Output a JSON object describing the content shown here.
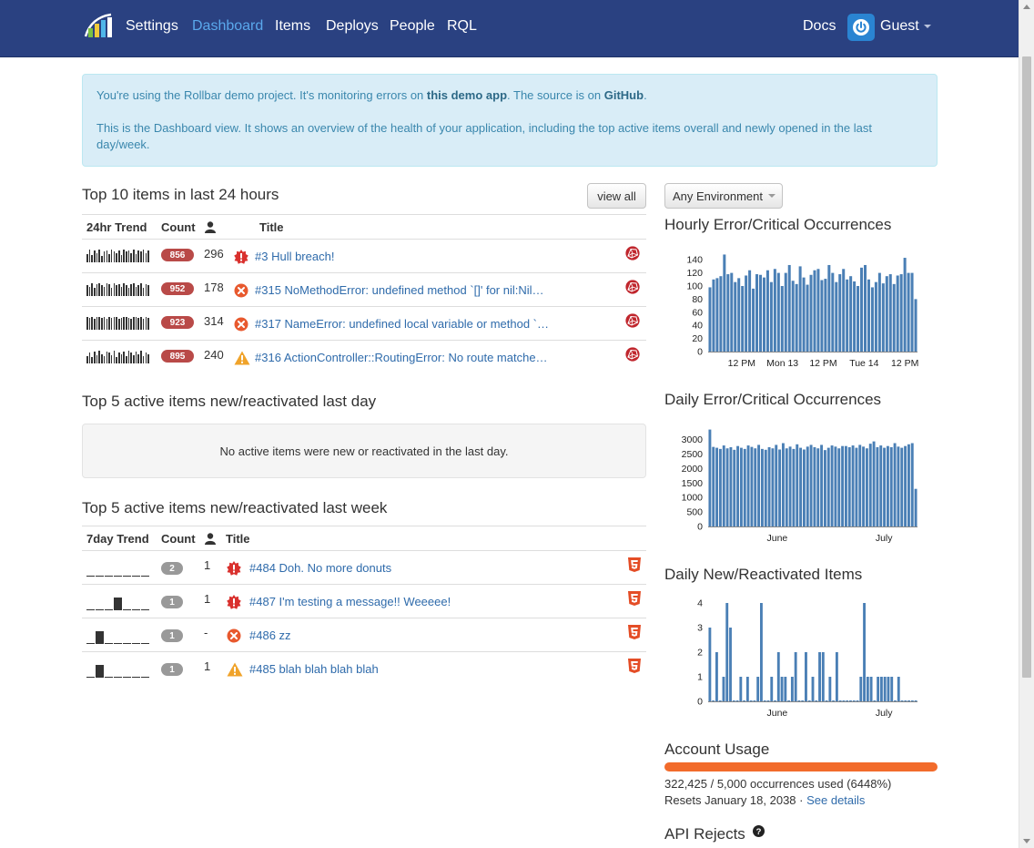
{
  "nav": {
    "items": [
      "Settings",
      "Dashboard",
      "Items",
      "Deploys",
      "People",
      "RQL"
    ],
    "active": "Dashboard",
    "docs": "Docs",
    "user": "Guest"
  },
  "alert": {
    "line1_pre": "You're using the Rollbar demo project. It's monitoring errors on ",
    "line1_link1": "this demo app",
    "line1_mid": ". The source is on ",
    "line1_link2": "GitHub",
    "line1_end": ".",
    "line2": "This is the Dashboard view. It shows an overview of the health of your application, including the top active items overall and newly opened in the last day/week."
  },
  "top10": {
    "title": "Top 10 items in last 24 hours",
    "view_all": "view all",
    "headers": {
      "trend": "24hr Trend",
      "count": "Count",
      "title": "Title"
    },
    "rows": [
      {
        "count": "856",
        "users": "296",
        "level": "critical",
        "title": "#3 Hull breach!",
        "trend": [
          8,
          12,
          7,
          11,
          9,
          12,
          6,
          10,
          11,
          8,
          12,
          10,
          9,
          11,
          7,
          12,
          10,
          11,
          9,
          12,
          8,
          11,
          10,
          12,
          9,
          11
        ]
      },
      {
        "count": "952",
        "users": "178",
        "level": "error",
        "title": "#315 NoMethodError: undefined method `[]' for nil:Nil…",
        "trend": [
          10,
          9,
          12,
          8,
          11,
          12,
          10,
          9,
          12,
          11,
          8,
          12,
          10,
          11,
          9,
          12,
          10,
          8,
          11,
          12,
          9,
          10,
          12,
          8,
          11,
          10
        ]
      },
      {
        "count": "923",
        "users": "314",
        "level": "error",
        "title": "#317 NameError: undefined local variable or method `…",
        "trend": [
          12,
          11,
          12,
          10,
          12,
          12,
          11,
          12,
          10,
          12,
          11,
          12,
          12,
          10,
          11,
          12,
          12,
          11,
          10,
          12,
          12,
          11,
          12,
          10,
          12,
          11
        ]
      },
      {
        "count": "895",
        "users": "240",
        "level": "warning",
        "title": "#316 ActionController::RoutingError: No route matche…",
        "trend": [
          7,
          10,
          6,
          11,
          8,
          12,
          9,
          7,
          11,
          10,
          8,
          12,
          6,
          10,
          9,
          11,
          7,
          12,
          10,
          8,
          11,
          9,
          12,
          7,
          10,
          9
        ]
      }
    ]
  },
  "top5day": {
    "title": "Top 5 active items new/reactivated last day",
    "empty": "No active items were new or reactivated in the last day."
  },
  "top5week": {
    "title": "Top 5 active items new/reactivated last week",
    "headers": {
      "trend": "7day Trend",
      "count": "Count",
      "title": "Title"
    },
    "rows": [
      {
        "count": "2",
        "users": "1",
        "level": "critical",
        "title": "#484 Doh. No more donuts",
        "trend": [
          0,
          0,
          0,
          0,
          0,
          0,
          0
        ]
      },
      {
        "count": "1",
        "users": "1",
        "level": "critical",
        "title": "#487 I'm testing a message!! Weeeee!",
        "trend": [
          0,
          0,
          0,
          1,
          0,
          0,
          0
        ]
      },
      {
        "count": "1",
        "users": "-",
        "level": "error",
        "title": "#486 zz",
        "trend": [
          0,
          1,
          0,
          0,
          0,
          0,
          0
        ]
      },
      {
        "count": "1",
        "users": "1",
        "level": "warning",
        "title": "#485 blah blah blah blah",
        "trend": [
          0,
          1,
          0,
          0,
          0,
          0,
          0
        ]
      }
    ]
  },
  "right": {
    "env": "Any Environment",
    "hourly_title": "Hourly Error/Critical Occurrences",
    "daily_title": "Daily Error/Critical Occurrences",
    "newitems_title": "Daily New/Reactivated Items",
    "usage_title": "Account Usage",
    "usage_line1": "322,425 / 5,000 occurrences used (6448%)",
    "usage_line2_pre": "Resets January 18, 2038 · ",
    "usage_link": "See details",
    "usage_fraction": 1.0,
    "api_rejects": "API Rejects"
  },
  "colors": {
    "bar": "#4a7fb5",
    "nav": "#2a4181",
    "usage": "#f26b2b",
    "badge_red": "#b94a48"
  },
  "chart_data": [
    {
      "type": "bar",
      "title": "Hourly Error/Critical Occurrences",
      "ylim": [
        0,
        150
      ],
      "yticks": [
        0,
        20,
        40,
        60,
        80,
        100,
        120,
        140
      ],
      "xtick_labels": [
        "12 PM",
        "Mon 13",
        "12 PM",
        "Tue 14",
        "12 PM"
      ],
      "values": [
        98,
        110,
        112,
        115,
        148,
        118,
        120,
        106,
        112,
        100,
        116,
        124,
        96,
        118,
        117,
        113,
        124,
        106,
        126,
        120,
        100,
        120,
        132,
        108,
        103,
        130,
        113,
        102,
        117,
        124,
        126,
        109,
        111,
        132,
        120,
        106,
        118,
        126,
        110,
        115,
        107,
        100,
        128,
        132,
        110,
        98,
        106,
        120,
        104,
        115,
        118,
        103,
        116,
        118,
        143,
        120,
        120,
        80
      ]
    },
    {
      "type": "bar",
      "title": "Daily Error/Critical Occurrences",
      "ylim": [
        0,
        3400
      ],
      "yticks": [
        0,
        500,
        1000,
        1500,
        2000,
        2500,
        3000
      ],
      "xtick_labels": [
        "June",
        "July"
      ],
      "values": [
        3350,
        2750,
        2720,
        2680,
        2800,
        2700,
        2740,
        2650,
        2780,
        2720,
        2680,
        2800,
        2750,
        2700,
        2820,
        2680,
        2650,
        2740,
        2700,
        2820,
        2660,
        2880,
        2700,
        2760,
        2680,
        2840,
        2720,
        2660,
        2760,
        2820,
        2740,
        2700,
        2820,
        2640,
        2720,
        2800,
        2760,
        2700,
        2780,
        2780,
        2740,
        2800,
        2720,
        2820,
        2760,
        2700,
        2860,
        2940,
        2740,
        2800,
        2720,
        2780,
        2740,
        2880,
        2760,
        2720,
        2780,
        2840,
        2880,
        1300
      ]
    },
    {
      "type": "bar",
      "title": "Daily New/Reactivated Items",
      "ylim": [
        0,
        4
      ],
      "yticks": [
        0,
        1,
        2,
        3,
        4
      ],
      "xtick_labels": [
        "June",
        "July"
      ],
      "values": [
        3,
        0,
        2,
        0,
        1,
        4,
        3,
        0,
        0,
        1,
        0,
        1,
        0,
        0,
        1,
        4,
        0,
        0,
        1,
        0,
        2,
        1,
        1,
        0,
        1,
        2,
        0,
        0,
        2,
        0,
        1,
        0,
        2,
        2,
        0,
        1,
        0,
        2,
        0,
        0,
        0,
        0,
        0,
        0,
        1,
        4,
        1,
        1,
        0,
        1,
        1,
        1,
        1,
        1,
        0,
        1,
        0,
        0,
        0,
        0,
        0
      ]
    }
  ]
}
